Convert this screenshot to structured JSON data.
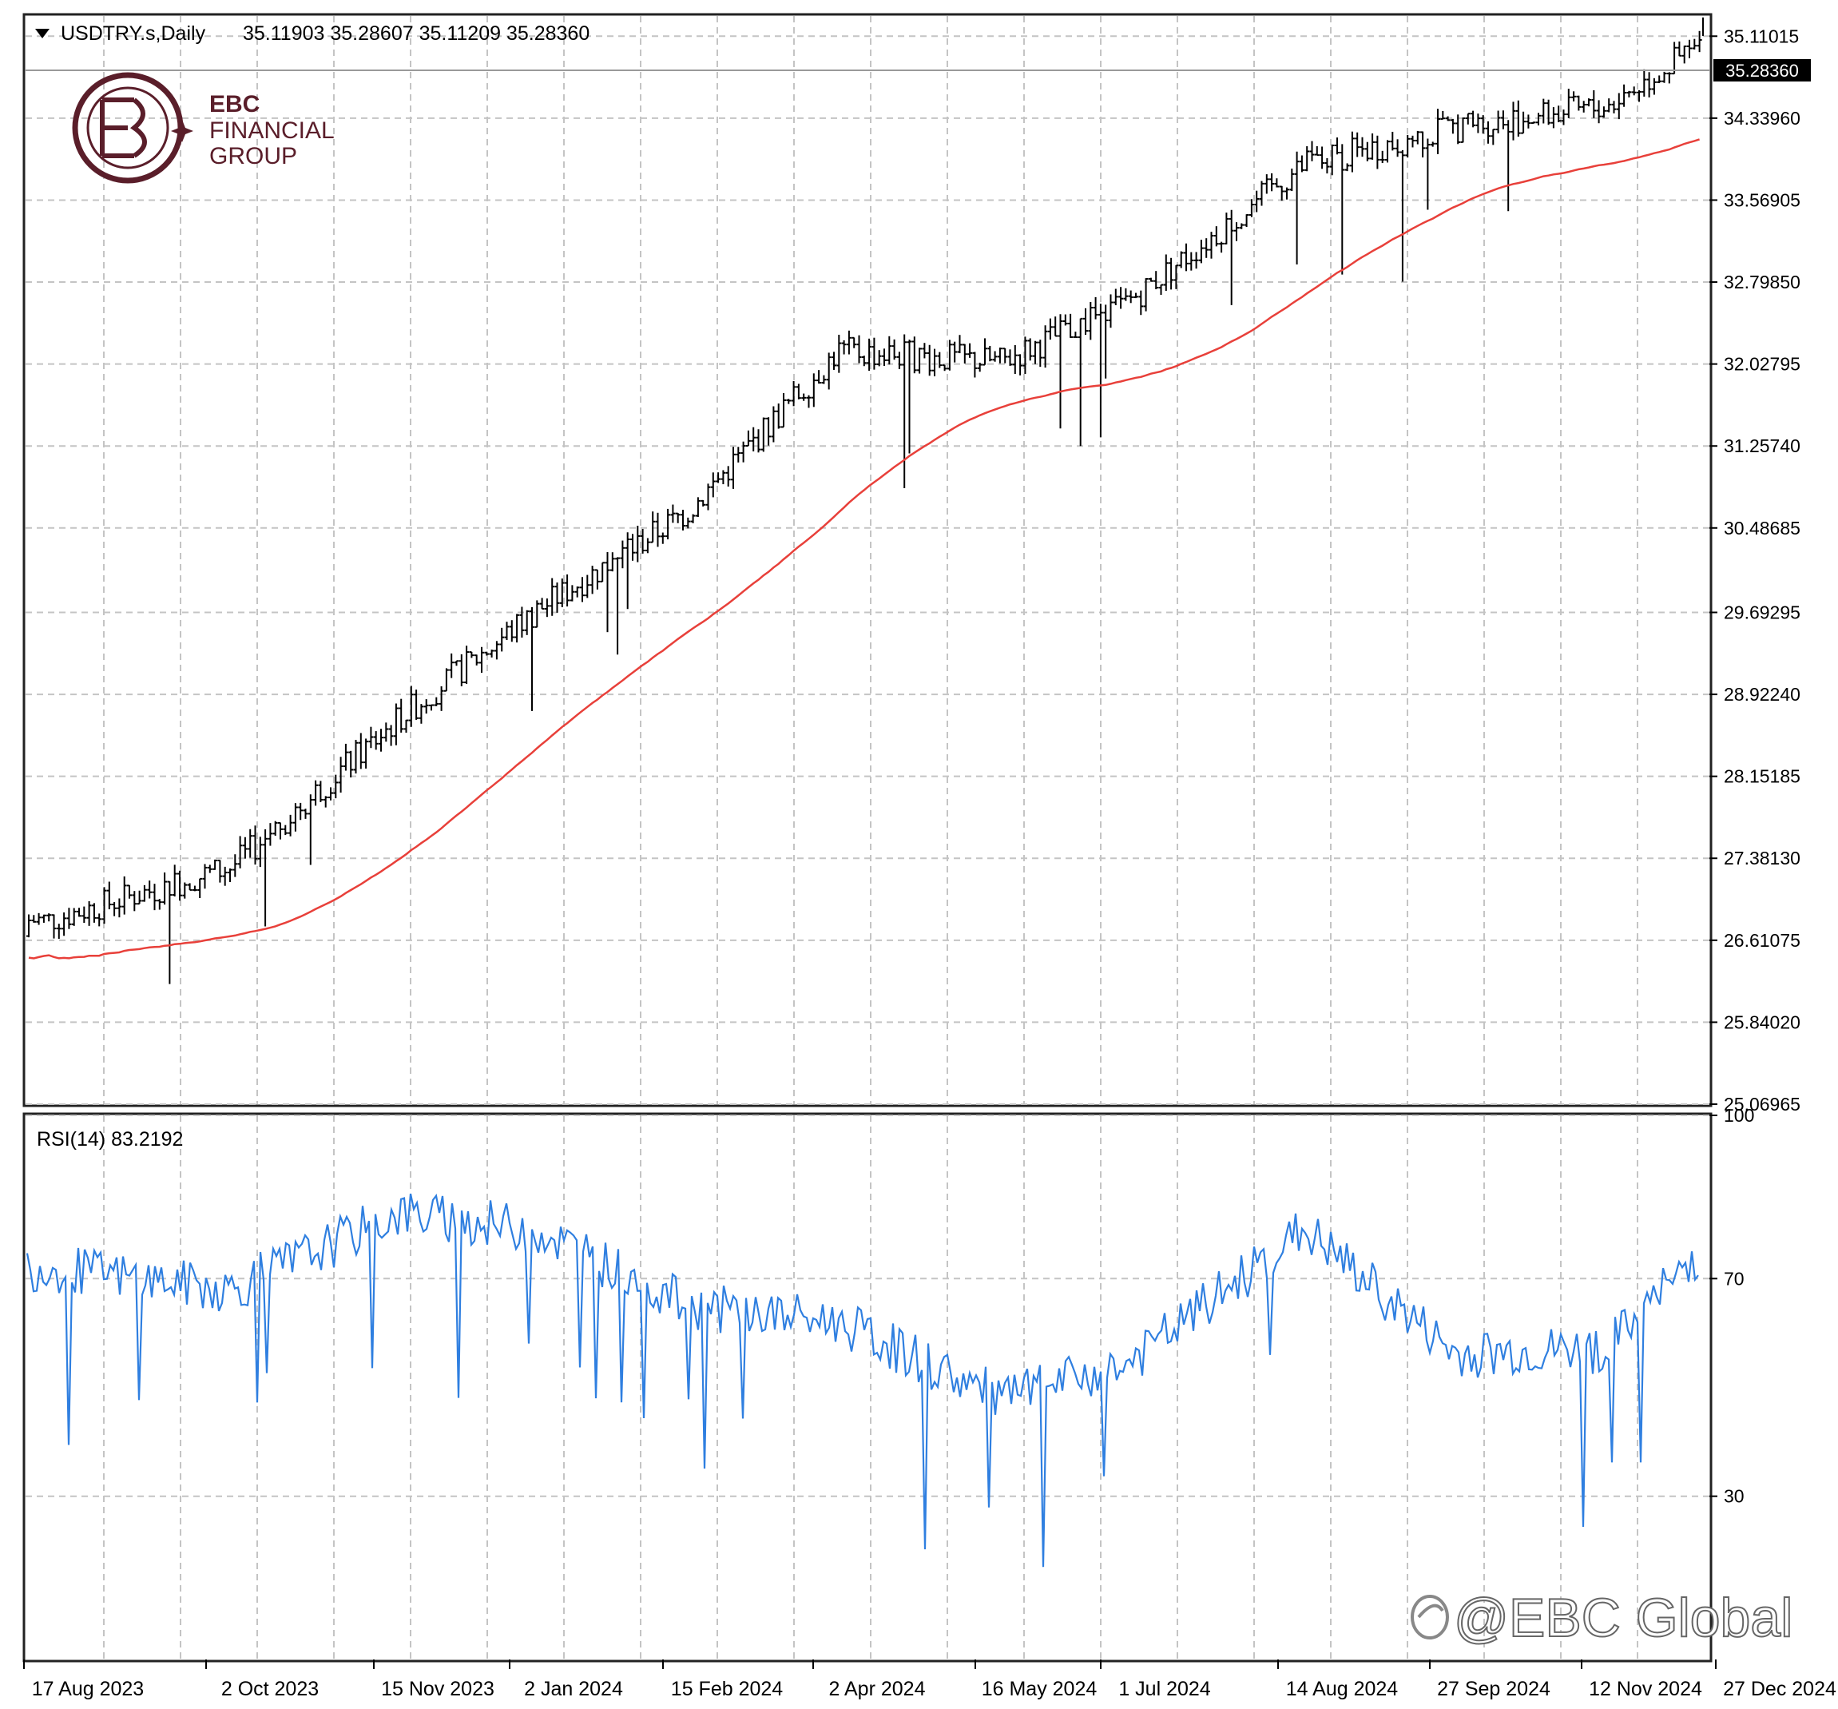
{
  "header": {
    "menu_icon": "triangle-down-icon",
    "symbol": "USDTRY.s,Daily",
    "ohlc": "35.11903 35.28607 35.11209 35.28360"
  },
  "logo": {
    "line1": "EBC",
    "line2": "FINANCIAL",
    "line3": "GROUP"
  },
  "watermark": {
    "icon": "weibo-icon",
    "text": "@EBC Global"
  },
  "colors": {
    "candle": "#000000",
    "ma": "#e8403a",
    "rsi": "#2f7fe0",
    "grid": "#c4c4c4",
    "logo": "#5a1e2a"
  },
  "price_axis": {
    "ticks": [
      "35.11015",
      "34.33960",
      "33.56905",
      "32.79850",
      "32.02795",
      "31.25740",
      "30.48685",
      "29.69295",
      "28.92240",
      "28.15185",
      "27.38130",
      "26.61075",
      "25.84020",
      "25.06965"
    ],
    "tick_values": [
      35.11015,
      34.3396,
      33.56905,
      32.7985,
      32.02795,
      31.2574,
      30.48685,
      29.69295,
      28.9224,
      28.15185,
      27.3813,
      26.61075,
      25.8402,
      25.06965
    ],
    "current_label": "35.28360",
    "current_value": 35.2836
  },
  "rsi_panel": {
    "label": "RSI(14) 83.2192",
    "ticks": [
      "100",
      "70",
      "30"
    ],
    "tick_values": [
      100,
      70,
      30
    ]
  },
  "date_axis": {
    "labels": [
      "17 Aug 2023",
      "2 Oct 2023",
      "15 Nov 2023",
      "2 Jan 2024",
      "15 Feb 2024",
      "2 Apr 2024",
      "16 May 2024",
      "1 Jul 2024",
      "14 Aug 2024",
      "27 Sep 2024",
      "12 Nov 2024",
      "27 Dec 2024"
    ]
  },
  "chart_data": {
    "type": "line",
    "title": "USDTRY.s,Daily",
    "x": [
      "17 Aug 2023",
      "2 Oct 2023",
      "15 Nov 2023",
      "2 Jan 2024",
      "15 Feb 2024",
      "2 Apr 2024",
      "16 May 2024",
      "1 Jul 2024",
      "14 Aug 2024",
      "27 Sep 2024",
      "12 Nov 2024",
      "27 Dec 2024"
    ],
    "series": [
      {
        "name": "USDTRY.s close",
        "values": [
          26.8,
          27.3,
          28.7,
          29.7,
          30.65,
          32.15,
          32.05,
          32.6,
          33.9,
          34.25,
          34.45,
          35.28
        ]
      },
      {
        "name": "RSI(14)",
        "values": [
          72,
          68,
          82,
          79,
          65,
          62,
          48,
          54,
          79,
          56,
          57,
          83
        ]
      }
    ],
    "price_ohlc_last": {
      "open": 35.11903,
      "high": 35.28607,
      "low": 35.11209,
      "close": 35.2836
    },
    "price_range": [
      25.06965,
      35.28607
    ],
    "rsi_ylim": [
      0,
      100
    ],
    "grid": true
  }
}
